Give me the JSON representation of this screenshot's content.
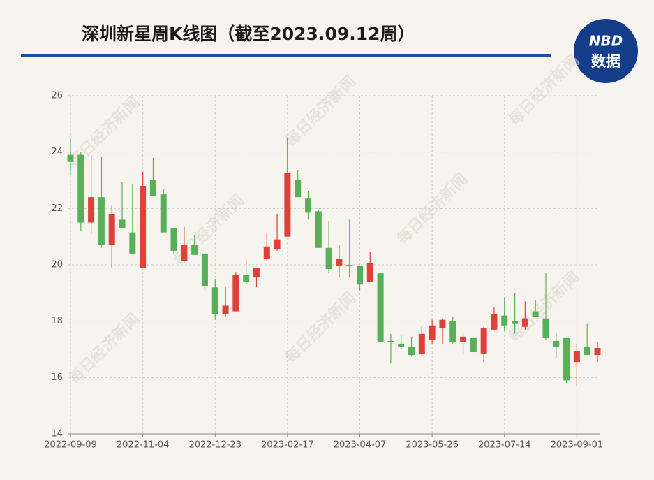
{
  "chart_data": {
    "type": "candlestick",
    "title": "深圳新星周K线图（截至2023.09.12周）",
    "logo": {
      "top": "NBD",
      "bottom": "数据"
    },
    "watermark": "每日经济新闻",
    "categories": [
      "2022-09-09",
      null,
      null,
      null,
      null,
      null,
      null,
      "2022-11-04",
      null,
      null,
      null,
      null,
      null,
      null,
      "2022-12-23",
      null,
      null,
      null,
      null,
      null,
      null,
      "2023-02-17",
      null,
      null,
      null,
      null,
      null,
      null,
      "2023-04-07",
      null,
      null,
      null,
      null,
      null,
      null,
      "2023-05-26",
      null,
      null,
      null,
      null,
      null,
      null,
      "2023-07-14",
      null,
      null,
      null,
      null,
      null,
      null,
      "2023-09-01",
      null,
      null
    ],
    "open": [
      23.9,
      23.9,
      21.5,
      22.4,
      20.7,
      21.6,
      21.15,
      19.9,
      23.0,
      22.5,
      21.3,
      20.15,
      20.7,
      20.4,
      19.2,
      18.25,
      18.35,
      19.65,
      19.55,
      20.2,
      20.55,
      21.0,
      23.0,
      22.35,
      21.9,
      20.6,
      19.95,
      20.0,
      19.95,
      19.4,
      19.7,
      17.3,
      17.2,
      17.1,
      16.85,
      17.35,
      17.75,
      18.0,
      17.25,
      17.4,
      16.85,
      17.7,
      18.2,
      18.0,
      17.8,
      18.35,
      18.1,
      17.3,
      17.4,
      16.55,
      17.1,
      16.8
    ],
    "high": [
      24.5,
      24.0,
      23.9,
      23.85,
      22.1,
      22.95,
      22.85,
      23.3,
      23.8,
      22.7,
      21.3,
      21.35,
      21.05,
      20.4,
      19.5,
      19.2,
      19.75,
      20.2,
      19.9,
      21.15,
      21.8,
      24.5,
      23.35,
      22.6,
      21.95,
      21.55,
      20.7,
      21.6,
      19.95,
      20.45,
      19.7,
      17.55,
      17.5,
      17.45,
      17.8,
      18.05,
      18.1,
      18.15,
      17.6,
      17.4,
      17.8,
      18.5,
      18.85,
      19.0,
      18.7,
      18.75,
      19.7,
      17.55,
      17.4,
      17.2,
      17.9,
      17.25
    ],
    "low": [
      23.2,
      21.2,
      21.1,
      20.6,
      19.9,
      21.3,
      20.4,
      19.9,
      22.45,
      21.15,
      20.4,
      20.1,
      20.35,
      19.1,
      18.05,
      18.15,
      18.35,
      19.3,
      19.2,
      20.15,
      20.5,
      21.0,
      22.4,
      21.6,
      20.6,
      19.7,
      19.55,
      19.55,
      19.1,
      19.4,
      17.25,
      16.5,
      17.0,
      16.75,
      16.8,
      17.2,
      17.2,
      17.2,
      16.85,
      16.9,
      16.55,
      17.7,
      17.65,
      17.55,
      17.7,
      18.15,
      17.35,
      16.7,
      15.8,
      15.7,
      16.8,
      16.55
    ],
    "close": [
      23.65,
      21.5,
      22.4,
      20.7,
      21.8,
      21.3,
      20.4,
      22.8,
      22.45,
      21.15,
      20.5,
      20.7,
      20.35,
      19.25,
      18.25,
      18.55,
      19.65,
      19.4,
      19.9,
      20.65,
      20.9,
      23.25,
      22.4,
      21.85,
      20.6,
      19.85,
      20.2,
      19.95,
      19.3,
      20.05,
      17.25,
      17.25,
      17.1,
      16.8,
      17.55,
      17.85,
      18.05,
      17.25,
      17.45,
      16.9,
      17.75,
      18.25,
      17.85,
      17.9,
      18.1,
      18.15,
      17.4,
      17.1,
      15.9,
      16.95,
      16.8,
      17.05
    ],
    "up_color": "#e0403a",
    "down_color": "#56b058",
    "ylim": [
      14,
      26
    ],
    "yticks": [
      14,
      16,
      18,
      20,
      22,
      24,
      26
    ],
    "grid": true
  }
}
